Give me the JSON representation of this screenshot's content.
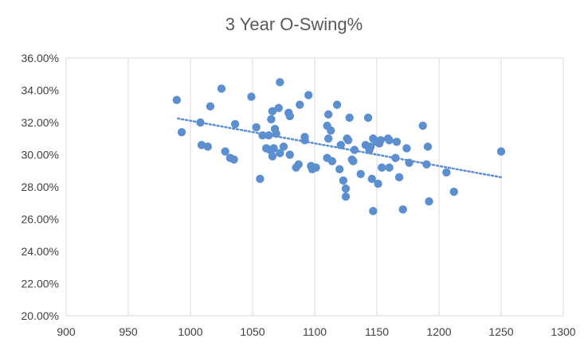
{
  "chart_data": {
    "type": "scatter",
    "title": "3 Year O-Swing%",
    "xlabel": "",
    "ylabel": "",
    "xlim": [
      900,
      1300
    ],
    "ylim": [
      20,
      36
    ],
    "x_ticks": [
      "900",
      "950",
      "1000",
      "1050",
      "1100",
      "1150",
      "1200",
      "1250",
      "1300"
    ],
    "y_ticks": [
      "20.00%",
      "22.00%",
      "24.00%",
      "26.00%",
      "28.00%",
      "30.00%",
      "32.00%",
      "34.00%",
      "36.00%"
    ],
    "grid": "vertical",
    "legend": "none",
    "marker_color": "#5b8fd0",
    "trendline": {
      "style": "dotted",
      "color": "#5b8fd0",
      "from": [
        990,
        32.25
      ],
      "to": [
        1250,
        28.6
      ]
    },
    "series": [
      {
        "points": [
          [
            989,
            33.4
          ],
          [
            993,
            31.4
          ],
          [
            1008,
            32.0
          ],
          [
            1009,
            30.6
          ],
          [
            1014,
            30.5
          ],
          [
            1016,
            33.0
          ],
          [
            1025,
            34.1
          ],
          [
            1028,
            30.2
          ],
          [
            1032,
            29.8
          ],
          [
            1035,
            29.7
          ],
          [
            1036,
            31.9
          ],
          [
            1049,
            33.6
          ],
          [
            1053,
            31.7
          ],
          [
            1056,
            28.5
          ],
          [
            1058,
            31.2
          ],
          [
            1061,
            30.4
          ],
          [
            1063,
            31.2
          ],
          [
            1064,
            30.3
          ],
          [
            1065,
            32.2
          ],
          [
            1066,
            32.7
          ],
          [
            1066,
            29.9
          ],
          [
            1067,
            30.4
          ],
          [
            1068,
            31.6
          ],
          [
            1069,
            31.3
          ],
          [
            1071,
            32.9
          ],
          [
            1072,
            34.5
          ],
          [
            1072,
            30.1
          ],
          [
            1075,
            30.5
          ],
          [
            1079,
            32.6
          ],
          [
            1080,
            32.4
          ],
          [
            1080,
            30.0
          ],
          [
            1085,
            29.2
          ],
          [
            1087,
            29.4
          ],
          [
            1088,
            33.1
          ],
          [
            1092,
            31.1
          ],
          [
            1092,
            30.9
          ],
          [
            1095,
            33.7
          ],
          [
            1097,
            29.3
          ],
          [
            1098,
            29.1
          ],
          [
            1101,
            29.2
          ],
          [
            1110,
            31.8
          ],
          [
            1110,
            29.8
          ],
          [
            1111,
            31.0
          ],
          [
            1111,
            32.5
          ],
          [
            1113,
            31.5
          ],
          [
            1114,
            29.6
          ],
          [
            1118,
            33.1
          ],
          [
            1120,
            29.1
          ],
          [
            1121,
            30.6
          ],
          [
            1123,
            28.4
          ],
          [
            1125,
            27.9
          ],
          [
            1125,
            27.4
          ],
          [
            1126,
            31.0
          ],
          [
            1127,
            30.9
          ],
          [
            1128,
            32.3
          ],
          [
            1130,
            29.7
          ],
          [
            1131,
            29.6
          ],
          [
            1132,
            30.3
          ],
          [
            1137,
            28.8
          ],
          [
            1141,
            30.6
          ],
          [
            1143,
            32.3
          ],
          [
            1144,
            30.3
          ],
          [
            1145,
            30.5
          ],
          [
            1146,
            28.5
          ],
          [
            1147,
            31.0
          ],
          [
            1147,
            26.5
          ],
          [
            1150,
            30.8
          ],
          [
            1151,
            28.2
          ],
          [
            1152,
            30.7
          ],
          [
            1153,
            30.9
          ],
          [
            1154,
            29.2
          ],
          [
            1159,
            31.0
          ],
          [
            1160,
            30.9
          ],
          [
            1160,
            29.2
          ],
          [
            1165,
            29.8
          ],
          [
            1166,
            30.8
          ],
          [
            1168,
            28.6
          ],
          [
            1171,
            26.6
          ],
          [
            1174,
            30.4
          ],
          [
            1176,
            29.5
          ],
          [
            1187,
            31.8
          ],
          [
            1190,
            29.4
          ],
          [
            1191,
            30.5
          ],
          [
            1192,
            27.1
          ],
          [
            1206,
            28.9
          ],
          [
            1212,
            27.7
          ],
          [
            1250,
            30.2
          ]
        ]
      }
    ]
  }
}
